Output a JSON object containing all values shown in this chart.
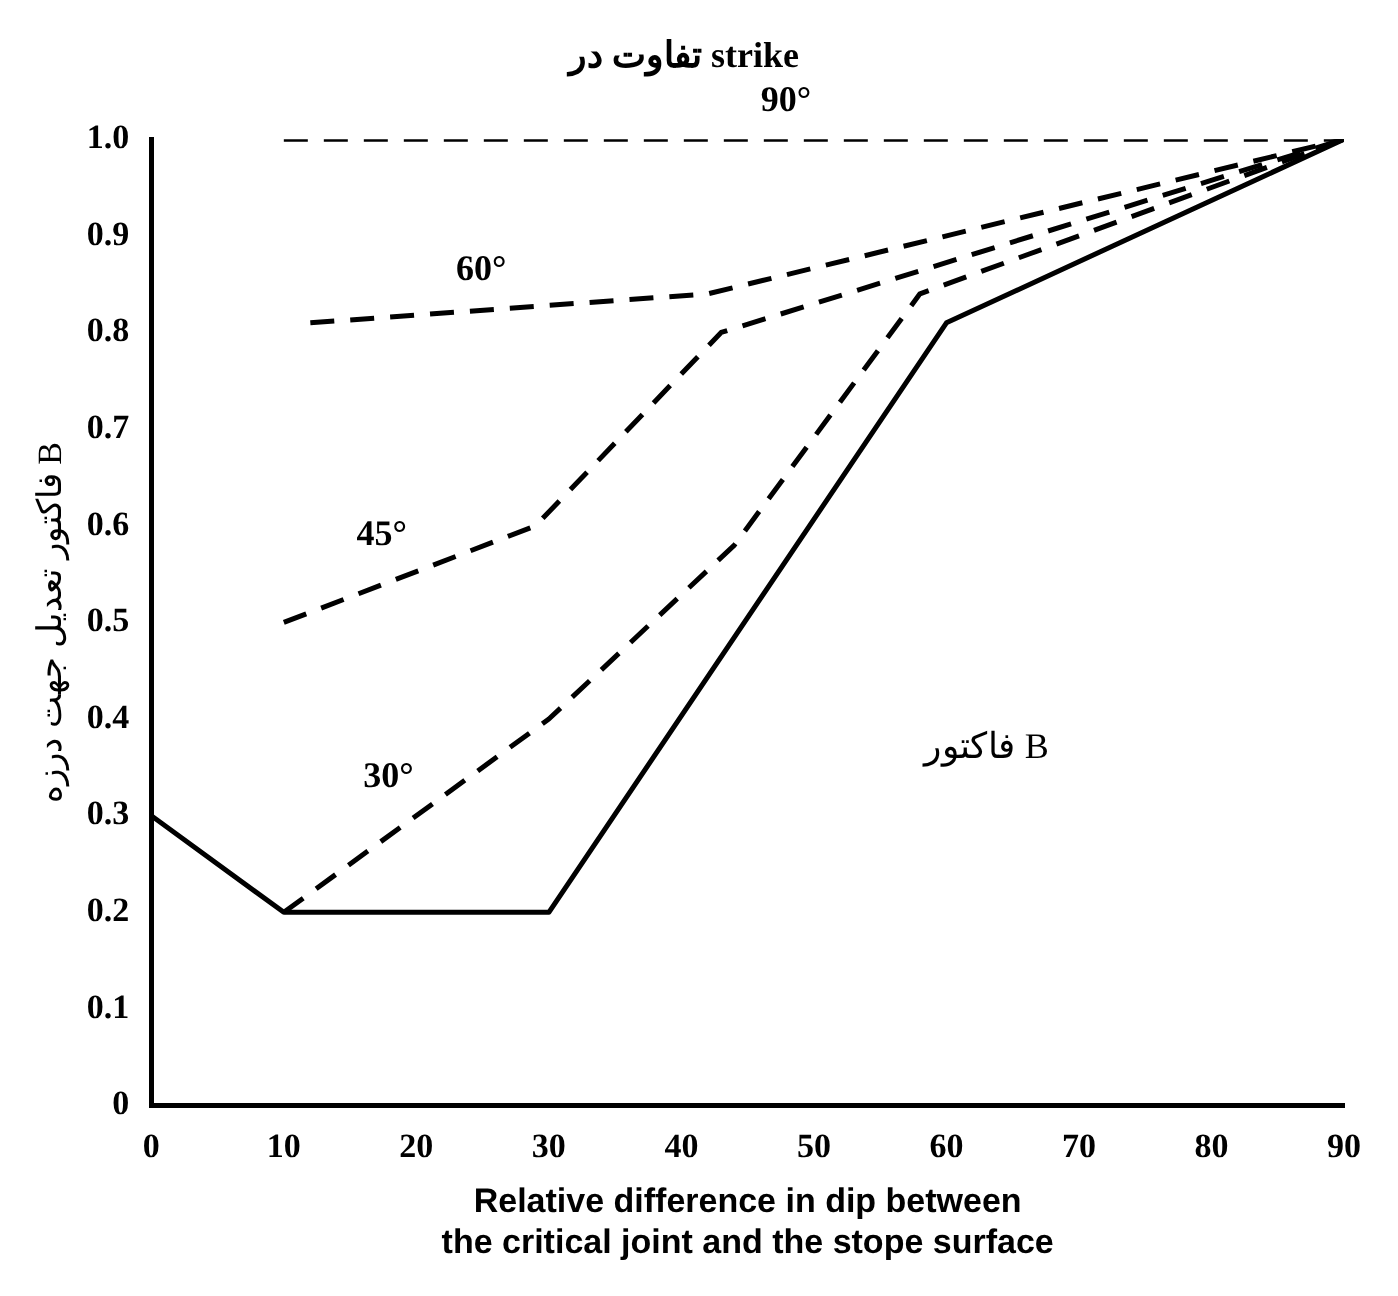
{
  "chart_data": {
    "type": "line",
    "title": "تفاوت در strike",
    "xlabel": "Relative difference in dip between\nthe critical joint and the stope surface",
    "ylabel": "فاکتور تعدیل جهت درزه B",
    "annotations": [
      "فاکتور B"
    ],
    "xlim": [
      0,
      90
    ],
    "xticks": [
      0,
      10,
      20,
      30,
      40,
      50,
      60,
      70,
      80,
      90
    ],
    "ylim": [
      0,
      1
    ],
    "yticks": [
      0,
      0.1,
      0.2,
      0.3,
      0.4,
      0.5,
      0.6,
      0.7,
      0.8,
      0.9,
      {
        "value": 1,
        "label": "1.0"
      }
    ],
    "grid": false,
    "legend": false,
    "marker": "none",
    "series": [
      {
        "color": "#000000",
        "line_style": "solid",
        "x": [
          0,
          10,
          30,
          60,
          90
        ],
        "values": [
          0.3,
          0.2,
          0.2,
          0.81,
          1.0
        ]
      },
      {
        "name": "30°",
        "color": "#000000",
        "line_style": "dashed",
        "x": [
          10,
          30,
          44,
          58,
          90
        ],
        "values": [
          0.2,
          0.4,
          0.58,
          0.84,
          1.0
        ]
      },
      {
        "name": "45°",
        "color": "#000000",
        "line_style": "dashed",
        "x": [
          10,
          29,
          43,
          90
        ],
        "values": [
          0.5,
          0.6,
          0.8,
          1.0
        ]
      },
      {
        "name": "60°",
        "color": "#000000",
        "line_style": "dashed",
        "x": [
          12,
          42,
          90
        ],
        "values": [
          0.81,
          0.84,
          1.0
        ]
      },
      {
        "name": "90°",
        "color": "#000000",
        "line_style": "dashed",
        "x": [
          10,
          90
        ],
        "values": [
          1.0,
          1.0
        ]
      }
    ]
  }
}
